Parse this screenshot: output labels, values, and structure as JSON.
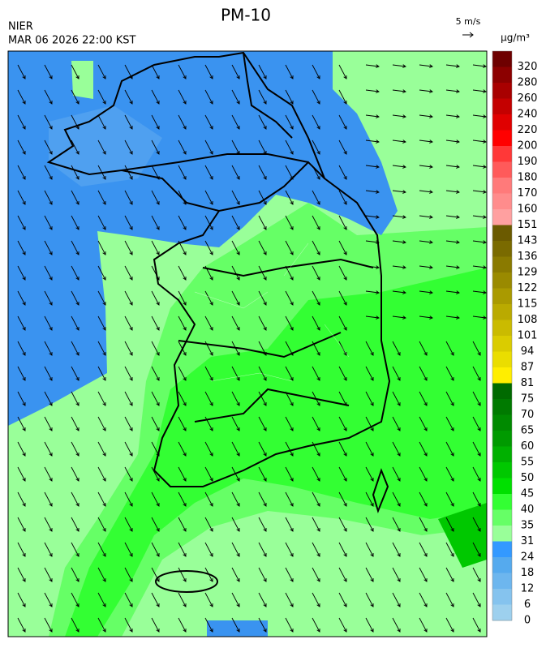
{
  "header": {
    "title": "PM-10",
    "agency": "NIER",
    "datetime": "MAR 06 2026 22:00 KST",
    "wind_scale": "5 m/s",
    "unit": "μg/m³"
  },
  "colorbar": {
    "levels": [
      320,
      280,
      260,
      240,
      220,
      200,
      190,
      180,
      170,
      160,
      151,
      143,
      136,
      129,
      122,
      115,
      108,
      101,
      94,
      87,
      81,
      75,
      70,
      65,
      60,
      55,
      50,
      45,
      40,
      35,
      31,
      24,
      18,
      12,
      6,
      0
    ],
    "colors": [
      "#6e0000",
      "#8c0000",
      "#a80000",
      "#c40000",
      "#e00000",
      "#ff0000",
      "#ff3838",
      "#ff5a5a",
      "#ff7a7a",
      "#ff8c8c",
      "#ffa0a0",
      "#6b5a00",
      "#7a6a00",
      "#8a7a00",
      "#9a8a00",
      "#aa9a00",
      "#baaa00",
      "#cabb00",
      "#dacc00",
      "#eadd00",
      "#ffee00",
      "#006a00",
      "#007a00",
      "#008a00",
      "#009a00",
      "#00b000",
      "#00c800",
      "#00e000",
      "#33ff33",
      "#66ff66",
      "#99ff99",
      "#3399ff",
      "#55aaee",
      "#6db6ee",
      "#85c3ee",
      "#9dd0ee"
    ]
  }
}
